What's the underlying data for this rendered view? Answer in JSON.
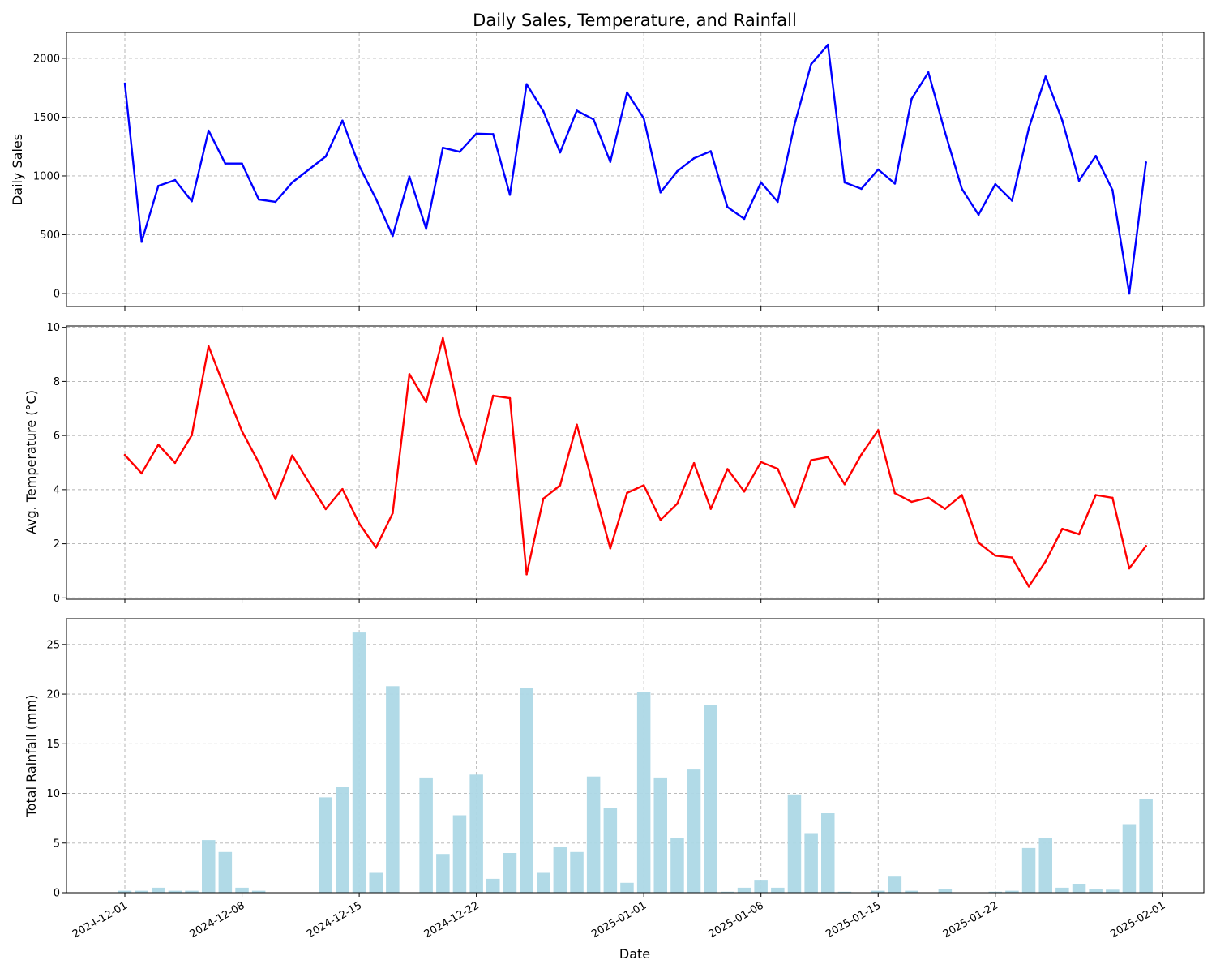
{
  "title": "Daily Sales, Temperature, and Rainfall",
  "xlabel": "Date",
  "colors": {
    "sales": "#0000ff",
    "temperature": "#ff0000",
    "rainfall": "#add8e6"
  },
  "x_ticks": [
    "2024-12-01",
    "2024-12-08",
    "2024-12-15",
    "2024-12-22",
    "2025-01-01",
    "2025-01-08",
    "2025-01-15",
    "2025-01-22",
    "2025-02-01"
  ],
  "chart_data": [
    {
      "type": "line",
      "ylabel": "Daily Sales",
      "ylim": [
        -110,
        2220
      ],
      "yticks": [
        0,
        500,
        1000,
        1500,
        2000
      ],
      "grid": true,
      "x": [
        "2024-12-01",
        "2024-12-02",
        "2024-12-03",
        "2024-12-04",
        "2024-12-05",
        "2024-12-06",
        "2024-12-07",
        "2024-12-08",
        "2024-12-09",
        "2024-12-10",
        "2024-12-11",
        "2024-12-12",
        "2024-12-13",
        "2024-12-14",
        "2024-12-15",
        "2024-12-16",
        "2024-12-17",
        "2024-12-18",
        "2024-12-19",
        "2024-12-20",
        "2024-12-21",
        "2024-12-22",
        "2024-12-23",
        "2024-12-24",
        "2024-12-25",
        "2024-12-26",
        "2024-12-27",
        "2024-12-28",
        "2024-12-29",
        "2024-12-30",
        "2024-12-31",
        "2025-01-01",
        "2025-01-02",
        "2025-01-03",
        "2025-01-04",
        "2025-01-05",
        "2025-01-06",
        "2025-01-07",
        "2025-01-08",
        "2025-01-09",
        "2025-01-10",
        "2025-01-11",
        "2025-01-12",
        "2025-01-13",
        "2025-01-14",
        "2025-01-15",
        "2025-01-16",
        "2025-01-17",
        "2025-01-18",
        "2025-01-19",
        "2025-01-20",
        "2025-01-21",
        "2025-01-22",
        "2025-01-23",
        "2025-01-24",
        "2025-01-25",
        "2025-01-26",
        "2025-01-27",
        "2025-01-28",
        "2025-01-29",
        "2025-01-30",
        "2025-01-31"
      ],
      "values": [
        1785,
        440,
        915,
        965,
        785,
        1385,
        1105,
        1105,
        800,
        780,
        945,
        1055,
        1165,
        1470,
        1085,
        805,
        490,
        995,
        550,
        1240,
        1205,
        1360,
        1355,
        840,
        1780,
        1550,
        1200,
        1555,
        1480,
        1120,
        1710,
        1490,
        860,
        1040,
        1150,
        1210,
        735,
        635,
        945,
        780,
        1435,
        1950,
        2115,
        945,
        890,
        1055,
        935,
        1655,
        1880,
        1370,
        890,
        670,
        930,
        790,
        1405,
        1845,
        1470,
        960,
        1170,
        880,
        0,
        1115
      ]
    },
    {
      "type": "line",
      "ylabel": "Avg. Temperature (°C)",
      "ylim": [
        -0.05,
        10.05
      ],
      "yticks": [
        0,
        2,
        4,
        6,
        8,
        10
      ],
      "grid": true,
      "x": [
        "2024-12-01",
        "2024-12-02",
        "2024-12-03",
        "2024-12-04",
        "2024-12-05",
        "2024-12-06",
        "2024-12-07",
        "2024-12-08",
        "2024-12-09",
        "2024-12-10",
        "2024-12-11",
        "2024-12-12",
        "2024-12-13",
        "2024-12-14",
        "2024-12-15",
        "2024-12-16",
        "2024-12-17",
        "2024-12-18",
        "2024-12-19",
        "2024-12-20",
        "2024-12-21",
        "2024-12-22",
        "2024-12-23",
        "2024-12-24",
        "2024-12-25",
        "2024-12-26",
        "2024-12-27",
        "2024-12-28",
        "2024-12-29",
        "2024-12-30",
        "2024-12-31",
        "2025-01-01",
        "2025-01-02",
        "2025-01-03",
        "2025-01-04",
        "2025-01-05",
        "2025-01-06",
        "2025-01-07",
        "2025-01-08",
        "2025-01-09",
        "2025-01-10",
        "2025-01-11",
        "2025-01-12",
        "2025-01-13",
        "2025-01-14",
        "2025-01-15",
        "2025-01-16",
        "2025-01-17",
        "2025-01-18",
        "2025-01-19",
        "2025-01-20",
        "2025-01-21",
        "2025-01-22",
        "2025-01-23",
        "2025-01-24",
        "2025-01-25",
        "2025-01-26",
        "2025-01-27",
        "2025-01-28",
        "2025-01-29",
        "2025-01-30",
        "2025-01-31"
      ],
      "values": [
        5.28,
        4.6,
        5.66,
        4.99,
        6.01,
        9.3,
        7.7,
        6.16,
        5.0,
        3.65,
        5.26,
        4.27,
        3.28,
        4.02,
        2.75,
        1.86,
        3.13,
        8.27,
        7.24,
        9.6,
        6.75,
        4.96,
        7.47,
        7.38,
        0.87,
        3.67,
        4.16,
        6.4,
        4.1,
        1.83,
        3.88,
        4.16,
        2.88,
        3.48,
        4.98,
        3.29,
        4.76,
        3.93,
        5.02,
        4.77,
        3.36,
        5.09,
        5.2,
        4.2,
        5.3,
        6.2,
        3.87,
        3.55,
        3.7,
        3.29,
        3.8,
        2.04,
        1.56,
        1.49,
        0.42,
        1.35,
        2.55,
        2.35,
        3.8,
        3.7,
        1.09,
        1.92
      ]
    },
    {
      "type": "bar",
      "ylabel": "Total Rainfall (mm)",
      "ylim": [
        0,
        27.6
      ],
      "yticks": [
        0,
        5,
        10,
        15,
        20,
        25
      ],
      "grid": true,
      "x": [
        "2024-12-01",
        "2024-12-02",
        "2024-12-03",
        "2024-12-04",
        "2024-12-05",
        "2024-12-06",
        "2024-12-07",
        "2024-12-08",
        "2024-12-09",
        "2024-12-10",
        "2024-12-11",
        "2024-12-12",
        "2024-12-13",
        "2024-12-14",
        "2024-12-15",
        "2024-12-16",
        "2024-12-17",
        "2024-12-18",
        "2024-12-19",
        "2024-12-20",
        "2024-12-21",
        "2024-12-22",
        "2024-12-23",
        "2024-12-24",
        "2024-12-25",
        "2024-12-26",
        "2024-12-27",
        "2024-12-28",
        "2024-12-29",
        "2024-12-30",
        "2024-12-31",
        "2025-01-01",
        "2025-01-02",
        "2025-01-03",
        "2025-01-04",
        "2025-01-05",
        "2025-01-06",
        "2025-01-07",
        "2025-01-08",
        "2025-01-09",
        "2025-01-10",
        "2025-01-11",
        "2025-01-12",
        "2025-01-13",
        "2025-01-14",
        "2025-01-15",
        "2025-01-16",
        "2025-01-17",
        "2025-01-18",
        "2025-01-19",
        "2025-01-20",
        "2025-01-21",
        "2025-01-22",
        "2025-01-23",
        "2025-01-24",
        "2025-01-25",
        "2025-01-26",
        "2025-01-27",
        "2025-01-28",
        "2025-01-29",
        "2025-01-30",
        "2025-01-31"
      ],
      "values": [
        0.2,
        0.2,
        0.5,
        0.2,
        0.2,
        5.3,
        4.1,
        0.5,
        0.2,
        0,
        0,
        0,
        9.6,
        10.7,
        26.2,
        2.0,
        20.8,
        0,
        11.6,
        3.9,
        7.8,
        11.9,
        1.4,
        4.0,
        20.6,
        2.0,
        4.6,
        4.1,
        11.7,
        8.5,
        1.0,
        20.2,
        11.6,
        5.5,
        12.4,
        18.9,
        0.1,
        0.5,
        1.3,
        0.5,
        9.9,
        6.0,
        8.0,
        0.1,
        0,
        0.2,
        1.7,
        0.2,
        0,
        0.4,
        0,
        0,
        0.1,
        0.2,
        4.5,
        5.5,
        0.5,
        0.9,
        0.4,
        0.3,
        6.9,
        9.4
      ]
    }
  ]
}
